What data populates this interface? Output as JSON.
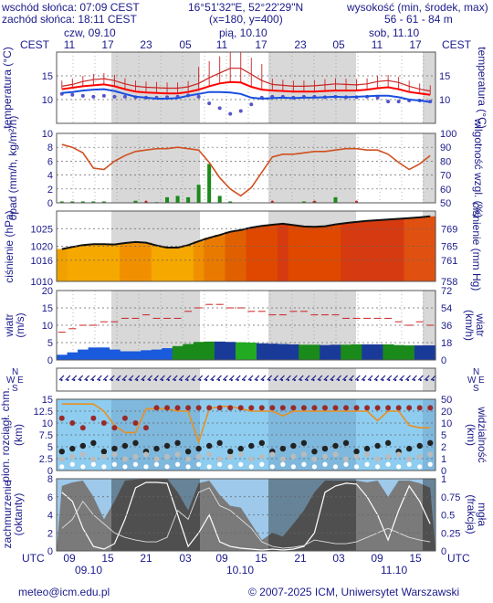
{
  "header": {
    "sunrise": "wschód słońca: 07:09 CEST",
    "sunset": "zachód słońca: 18:11 CEST",
    "coords": "16°51'32\"E, 52°22'29\"N",
    "grid": "(x=180, y=400)",
    "elev_label": "wysokość (min, środek, max)",
    "elev_values": "56 - 61 - 84 m"
  },
  "timezone": "CEST",
  "utc_label": "UTC",
  "footer": {
    "email": "meteo@icm.edu.pl",
    "copyright": "© 2007-2025 ICM, Uniwersytet Warszawski"
  },
  "colors": {
    "night": "#d8d8d8",
    "day": "#ffffff",
    "axis_text": "#1a1a8a",
    "temp_max": "#cc2222",
    "temp_mean": "#ff0000",
    "temp_min": "#1a4fe0",
    "dew": "#5555cc",
    "humidity": "#d05020",
    "precip": "#1a8a1a",
    "pressure_line": "#111111",
    "wind_gust": "#cc2222",
    "wind_fill": "#1a5adc",
    "wind_fill2": "#1a8a1a",
    "vis_bg": "#8ecdf0",
    "cloud_bg": "#2a2a2a"
  },
  "chart_data": [
    {
      "type": "line",
      "title": "temperatura",
      "ylabel": "temperatura (°C)",
      "ylim": [
        5,
        20
      ],
      "yticks": [
        10,
        15
      ],
      "series": [
        {
          "name": "max",
          "values": [
            12.8,
            13.2,
            13.8,
            14.2,
            14.4,
            14.0,
            13.3,
            12.8,
            12.6,
            12.5,
            12.4,
            12.4,
            12.7,
            13.4,
            14.6,
            15.6,
            16.6,
            16.6,
            15.3,
            14.0,
            13.2,
            13.0,
            12.8,
            12.8,
            12.9,
            13.1,
            13.3,
            13.2,
            13.1,
            13.3,
            13.8,
            14.0,
            13.6,
            12.8,
            12.2,
            11.8
          ]
        },
        {
          "name": "mean",
          "values": [
            12.2,
            12.5,
            12.8,
            13.0,
            13.2,
            12.8,
            12.2,
            11.7,
            11.5,
            11.4,
            11.3,
            11.3,
            11.6,
            12.1,
            12.8,
            13.4,
            13.7,
            13.6,
            12.7,
            12.1,
            11.9,
            11.8,
            11.7,
            11.7,
            11.7,
            11.8,
            11.9,
            11.9,
            11.9,
            12.1,
            12.4,
            12.6,
            12.2,
            11.6,
            11.3,
            11.0
          ]
        },
        {
          "name": "min",
          "values": [
            11.4,
            11.6,
            11.9,
            12.1,
            12.2,
            11.8,
            11.2,
            10.6,
            10.4,
            10.2,
            10.2,
            10.3,
            10.8,
            11.2,
            11.6,
            11.6,
            11.5,
            11.2,
            10.4,
            10.2,
            10.3,
            10.4,
            10.3,
            10.4,
            10.4,
            10.5,
            10.6,
            10.5,
            10.6,
            10.7,
            10.8,
            10.8,
            10.5,
            10.0,
            9.8,
            9.5
          ]
        },
        {
          "name": "dew",
          "values": [
            11.2,
            11.0,
            10.8,
            10.6,
            10.8,
            10.6,
            10.6,
            10.5,
            10.4,
            10.4,
            10.5,
            10.6,
            10.9,
            10.6,
            9.2,
            8.2,
            7.0,
            7.6,
            9.0,
            10.4,
            10.6,
            10.6,
            10.4,
            10.6,
            10.6,
            10.5,
            10.6,
            10.5,
            10.5,
            10.6,
            10.4,
            9.6,
            9.6,
            9.8,
            9.8,
            9.6
          ]
        }
      ]
    },
    {
      "type": "line",
      "title": "opad",
      "ylabel": "opad (mm/h, kg/m²/h)",
      "y2label": "wilgotność wzgl. (%)",
      "ylim": [
        0,
        10
      ],
      "yticks": [
        0,
        2,
        4,
        6,
        8,
        10
      ],
      "y2lim": [
        50,
        100
      ],
      "y2ticks": [
        50,
        60,
        70,
        80,
        90,
        100
      ],
      "series": [
        {
          "name": "humidity",
          "values": [
            92,
            90,
            86,
            75,
            74,
            80,
            84,
            87,
            88,
            89,
            89,
            90,
            89,
            88,
            79,
            68,
            60,
            55,
            61,
            72,
            83,
            85,
            85,
            86,
            87,
            87,
            88,
            89,
            89,
            88,
            88,
            85,
            79,
            74,
            78,
            84
          ]
        },
        {
          "name": "precip",
          "values": [
            0.2,
            0.2,
            0.2,
            0.2,
            0.2,
            0,
            0,
            0.3,
            0.1,
            0.1,
            0.8,
            1.0,
            0.8,
            2.6,
            5.6,
            1.0,
            0.2,
            0,
            0,
            0,
            0,
            0,
            0,
            0.2,
            0.2,
            0,
            0.8,
            0,
            0,
            0,
            0,
            0,
            0,
            0,
            0,
            0
          ]
        }
      ]
    },
    {
      "type": "area",
      "title": "ciśnienie",
      "ylabel": "ciśnienie (hPa)",
      "y2label": "ciśnienie (mm Hg)",
      "ylim": [
        1010,
        1030
      ],
      "yticks": [
        1010,
        1016,
        1020,
        1025
      ],
      "y2ticks": [
        758,
        761,
        765,
        769
      ],
      "series": [
        {
          "name": "pressure",
          "values": [
            1019.2,
            1019.8,
            1020.3,
            1020.6,
            1020.6,
            1020.5,
            1020.9,
            1021.2,
            1021.0,
            1020.2,
            1019.6,
            1019.6,
            1020.3,
            1021.4,
            1022.4,
            1023.2,
            1024.1,
            1024.6,
            1025.3,
            1025.8,
            1026.1,
            1026.4,
            1026.0,
            1025.6,
            1025.5,
            1025.7,
            1026.2,
            1026.6,
            1026.9,
            1027.2,
            1027.4,
            1027.6,
            1027.8,
            1028.0,
            1028.2,
            1028.5
          ]
        }
      ]
    },
    {
      "type": "line",
      "title": "wiatr",
      "ylabel": "wiatr (m/s)",
      "y2label": "wiatr (km/h)",
      "ylim": [
        0,
        20
      ],
      "yticks": [
        0,
        5,
        10,
        15,
        20
      ],
      "y2ticks": [
        0,
        18,
        36,
        54,
        72
      ],
      "series": [
        {
          "name": "gust",
          "values": [
            8,
            9,
            10,
            10,
            11,
            11,
            12,
            12,
            13,
            12,
            12,
            12,
            14,
            15,
            16,
            16,
            15,
            15,
            14,
            14,
            13,
            13,
            14,
            14,
            13,
            13,
            13,
            12,
            12,
            12,
            12,
            12,
            11,
            10,
            11,
            10
          ]
        },
        {
          "name": "speed",
          "values": [
            1.5,
            2.2,
            3.0,
            3.6,
            3.6,
            3.0,
            2.5,
            2.5,
            2.8,
            3.0,
            3.4,
            4.0,
            4.6,
            5.2,
            5.3,
            5.3,
            5.2,
            5.1,
            5.0,
            4.8,
            4.7,
            4.6,
            4.5,
            4.4,
            4.4,
            4.3,
            4.4,
            4.4,
            4.5,
            4.5,
            4.5,
            4.5,
            4.3,
            4.2,
            4.2,
            4.2
          ]
        }
      ]
    },
    {
      "type": "scatter",
      "title": "widzialność",
      "ylabel": "pion. rozciągł. chm. (km)",
      "y2label": "widzialność (km)",
      "ylim": [
        0,
        15
      ],
      "yticks": [
        0,
        2.5,
        5,
        7.5,
        10,
        12.5,
        15
      ],
      "y2ticks": [
        0,
        1,
        2,
        5,
        10,
        20,
        50,
        100
      ]
    },
    {
      "type": "area",
      "title": "zachmurzenie",
      "ylabel": "zachmurzenie (oktanty)",
      "y2label": "mgła (frakcja)",
      "ylim": [
        0,
        8
      ],
      "yticks": [
        0,
        2,
        4,
        6,
        8
      ],
      "y2lim": [
        0,
        1
      ],
      "y2ticks": [
        0,
        0.25,
        0.5,
        0.75,
        1
      ]
    }
  ],
  "time_axis": {
    "top_dates": [
      "czw, 09.10",
      "pią, 10.10",
      "sob, 11.10"
    ],
    "top_hours": [
      "11",
      "17",
      "23",
      "05",
      "11",
      "17",
      "23",
      "05",
      "11",
      "17"
    ],
    "bottom_dates": [
      "09.10",
      "10.10",
      "11.10"
    ],
    "bottom_hours": [
      "09",
      "15",
      "21",
      "03",
      "09",
      "15",
      "21",
      "03",
      "09",
      "15"
    ]
  }
}
